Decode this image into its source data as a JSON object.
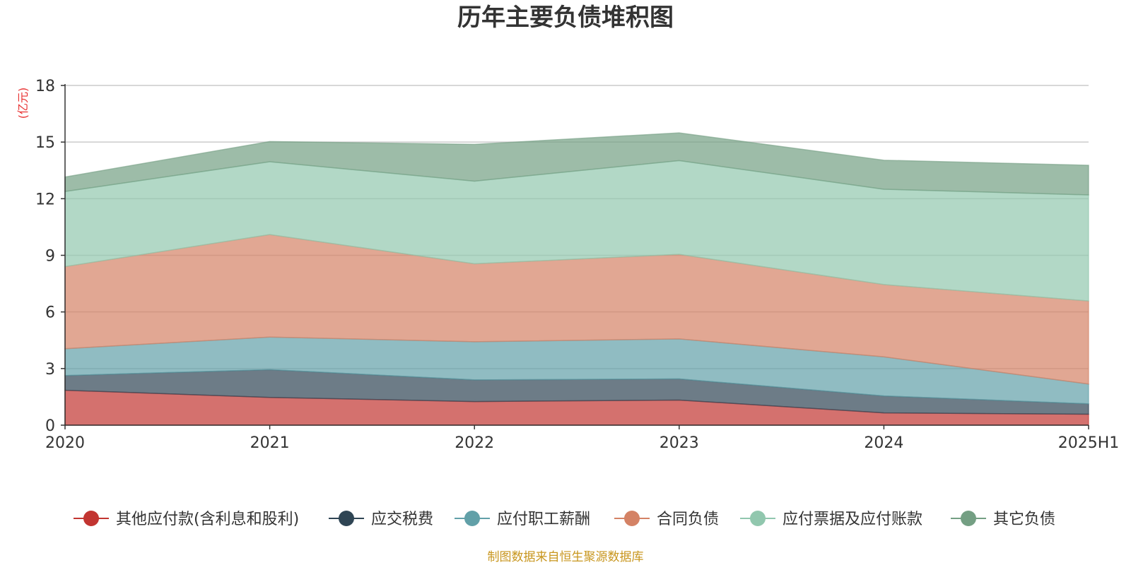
{
  "chart_data": {
    "type": "area",
    "stacked": true,
    "title": "历年主要负债堆积图",
    "ylabel": "(亿元)",
    "xlabel": "",
    "categories": [
      "2020",
      "2021",
      "2022",
      "2023",
      "2024",
      "2025H1"
    ],
    "ylim": [
      0,
      18
    ],
    "yticks": [
      0,
      3,
      6,
      9,
      12,
      15,
      18
    ],
    "grid": true,
    "legend_position": "bottom",
    "series": [
      {
        "name": "其他应付款(含利息和股利)",
        "color": "#c23531",
        "values": [
          1.85,
          1.47,
          1.25,
          1.33,
          0.65,
          0.58
        ]
      },
      {
        "name": "应交税费",
        "color": "#2f4554",
        "values": [
          0.78,
          1.47,
          1.15,
          1.12,
          0.9,
          0.55
        ]
      },
      {
        "name": "应付职工薪酬",
        "color": "#61a0a8",
        "values": [
          1.42,
          1.73,
          2.02,
          2.12,
          2.07,
          1.05
        ]
      },
      {
        "name": "合同负债",
        "color": "#d48265",
        "values": [
          4.35,
          5.43,
          4.13,
          4.48,
          3.83,
          4.4
        ]
      },
      {
        "name": "应付票据及应付账款",
        "color": "#91c7ae",
        "values": [
          3.98,
          3.86,
          4.38,
          4.97,
          5.05,
          5.62
        ]
      },
      {
        "name": "其它负债",
        "color": "#749f83",
        "values": [
          0.77,
          1.07,
          1.95,
          1.47,
          1.54,
          1.57
        ]
      }
    ],
    "source": "制图数据来自恒生聚源数据库"
  }
}
